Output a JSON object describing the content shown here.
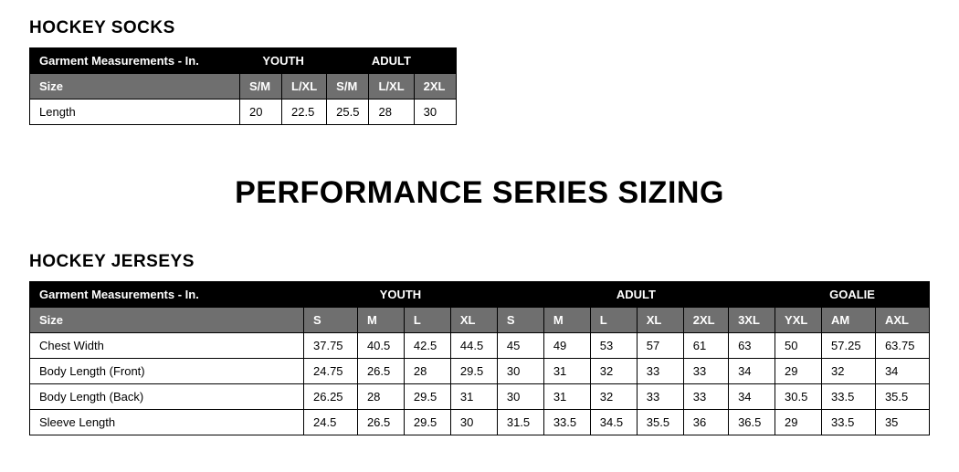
{
  "socks": {
    "title": "HOCKEY SOCKS",
    "meas_label": "Garment Measurements - In.",
    "size_label": "Size",
    "groups": [
      {
        "name": "YOUTH",
        "span": 2
      },
      {
        "name": "ADULT",
        "span": 3
      }
    ],
    "sizes": [
      "S/M",
      "L/XL",
      "S/M",
      "L/XL",
      "2XL"
    ],
    "rows": [
      {
        "label": "Length",
        "values": [
          "20",
          "22.5",
          "25.5",
          "28",
          "30"
        ]
      }
    ]
  },
  "main_heading": "PERFORMANCE SERIES SIZING",
  "jerseys": {
    "title": "HOCKEY JERSEYS",
    "meas_label": "Garment Measurements - In.",
    "size_label": "Size",
    "groups": [
      {
        "name": "YOUTH",
        "span": 4
      },
      {
        "name": "ADULT",
        "span": 6
      },
      {
        "name": "GOALIE",
        "span": 3
      }
    ],
    "sizes": [
      "S",
      "M",
      "L",
      "XL",
      "S",
      "M",
      "L",
      "XL",
      "2XL",
      "3XL",
      "YXL",
      "AM",
      "AXL"
    ],
    "rows": [
      {
        "label": "Chest Width",
        "values": [
          "37.75",
          "40.5",
          "42.5",
          "44.5",
          "45",
          "49",
          "53",
          "57",
          "61",
          "63",
          "50",
          "57.25",
          "63.75"
        ]
      },
      {
        "label": "Body Length (Front)",
        "values": [
          "24.75",
          "26.5",
          "28",
          "29.5",
          "30",
          "31",
          "32",
          "33",
          "33",
          "34",
          "29",
          "32",
          "34"
        ]
      },
      {
        "label": "Body Length (Back)",
        "values": [
          "26.25",
          "28",
          "29.5",
          "31",
          "30",
          "31",
          "32",
          "33",
          "33",
          "34",
          "30.5",
          "33.5",
          "35.5"
        ]
      },
      {
        "label": "Sleeve Length",
        "values": [
          "24.5",
          "26.5",
          "29.5",
          "30",
          "31.5",
          "33.5",
          "34.5",
          "35.5",
          "36",
          "36.5",
          "29",
          "33.5",
          "35"
        ]
      }
    ]
  }
}
